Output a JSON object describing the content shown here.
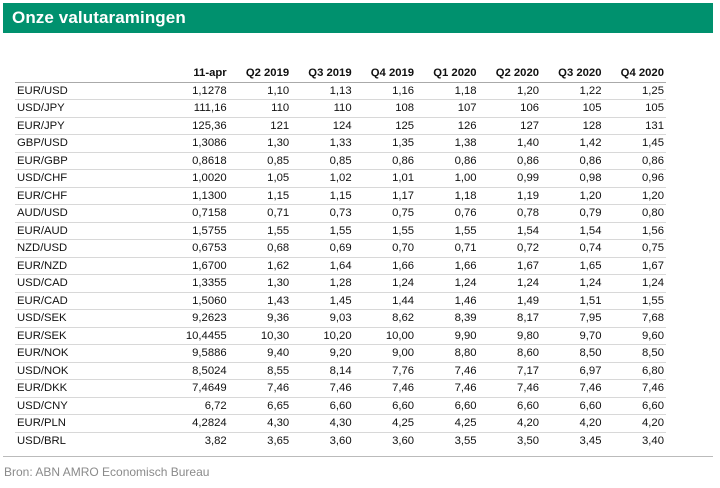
{
  "title": "Onze valutaramingen",
  "table": {
    "columns": [
      "",
      "11-apr",
      "Q2 2019",
      "Q3 2019",
      "Q4 2019",
      "Q1 2020",
      "Q2 2020",
      "Q3 2020",
      "Q4 2020"
    ],
    "rows": [
      [
        "EUR/USD",
        "1,1278",
        "1,10",
        "1,13",
        "1,16",
        "1,18",
        "1,20",
        "1,22",
        "1,25"
      ],
      [
        "USD/JPY",
        "111,16",
        "110",
        "110",
        "108",
        "107",
        "106",
        "105",
        "105"
      ],
      [
        "EUR/JPY",
        "125,36",
        "121",
        "124",
        "125",
        "126",
        "127",
        "128",
        "131"
      ],
      [
        "GBP/USD",
        "1,3086",
        "1,30",
        "1,33",
        "1,35",
        "1,38",
        "1,40",
        "1,42",
        "1,45"
      ],
      [
        "EUR/GBP",
        "0,8618",
        "0,85",
        "0,85",
        "0,86",
        "0,86",
        "0,86",
        "0,86",
        "0,86"
      ],
      [
        "USD/CHF",
        "1,0020",
        "1,05",
        "1,02",
        "1,01",
        "1,00",
        "0,99",
        "0,98",
        "0,96"
      ],
      [
        "EUR/CHF",
        "1,1300",
        "1,15",
        "1,15",
        "1,17",
        "1,18",
        "1,19",
        "1,20",
        "1,20"
      ],
      [
        "AUD/USD",
        "0,7158",
        "0,71",
        "0,73",
        "0,75",
        "0,76",
        "0,78",
        "0,79",
        "0,80"
      ],
      [
        "EUR/AUD",
        "1,5755",
        "1,55",
        "1,55",
        "1,55",
        "1,55",
        "1,54",
        "1,54",
        "1,56"
      ],
      [
        "NZD/USD",
        "0,6753",
        "0,68",
        "0,69",
        "0,70",
        "0,71",
        "0,72",
        "0,74",
        "0,75"
      ],
      [
        "EUR/NZD",
        "1,6700",
        "1,62",
        "1,64",
        "1,66",
        "1,66",
        "1,67",
        "1,65",
        "1,67"
      ],
      [
        "USD/CAD",
        "1,3355",
        "1,30",
        "1,28",
        "1,24",
        "1,24",
        "1,24",
        "1,24",
        "1,24"
      ],
      [
        "EUR/CAD",
        "1,5060",
        "1,43",
        "1,45",
        "1,44",
        "1,46",
        "1,49",
        "1,51",
        "1,55"
      ],
      [
        "USD/SEK",
        "9,2623",
        "9,36",
        "9,03",
        "8,62",
        "8,39",
        "8,17",
        "7,95",
        "7,68"
      ],
      [
        "EUR/SEK",
        "10,4455",
        "10,30",
        "10,20",
        "10,00",
        "9,90",
        "9,80",
        "9,70",
        "9,60"
      ],
      [
        "EUR/NOK",
        "9,5886",
        "9,40",
        "9,20",
        "9,00",
        "8,80",
        "8,60",
        "8,50",
        "8,50"
      ],
      [
        "USD/NOK",
        "8,5024",
        "8,55",
        "8,14",
        "7,76",
        "7,46",
        "7,17",
        "6,97",
        "6,80"
      ],
      [
        "EUR/DKK",
        "7,4649",
        "7,46",
        "7,46",
        "7,46",
        "7,46",
        "7,46",
        "7,46",
        "7,46"
      ],
      [
        "USD/CNY",
        "6,72",
        "6,65",
        "6,60",
        "6,60",
        "6,60",
        "6,60",
        "6,60",
        "6,60"
      ],
      [
        "EUR/PLN",
        "4,2824",
        "4,30",
        "4,30",
        "4,25",
        "4,25",
        "4,20",
        "4,20",
        "4,20"
      ],
      [
        "USD/BRL",
        "3,82",
        "3,65",
        "3,60",
        "3,60",
        "3,55",
        "3,50",
        "3,45",
        "3,40"
      ]
    ]
  },
  "source": "Bron: ABN AMRO Economisch Bureau",
  "colors": {
    "header_bg": "#00916e",
    "header_text": "#ffffff",
    "source_text": "#8a8a8a"
  }
}
